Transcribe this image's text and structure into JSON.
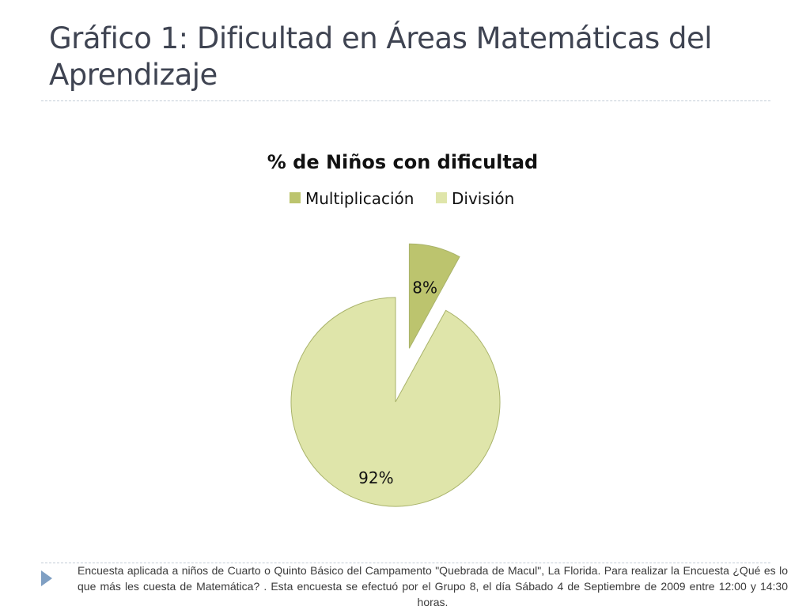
{
  "slide": {
    "title": "Gráfico 1: Dificultad en Áreas Matemáticas del Aprendizaje",
    "footer_text": "Encuesta aplicada a niños de Cuarto o Quinto Básico del Campamento \"Quebrada de Macul\", La Florida. Para realizar la Encuesta ¿Qué  es lo que más les cuesta de Matemática? . Esta encuesta se efectuó por el Grupo 8, el día Sábado 4 de Septiembre de 2009 entre 12:00 y 14:30 horas."
  },
  "chart_data": {
    "type": "pie",
    "title": "% de Niños con dificultad",
    "legend_position": "top",
    "categories": [
      "Multiplicación",
      "División"
    ],
    "values": [
      8,
      92
    ],
    "labels": [
      "8%",
      "92%"
    ],
    "colors": [
      "#bcc46e",
      "#dfe5aa"
    ],
    "exploded": [
      "Multiplicación"
    ]
  }
}
